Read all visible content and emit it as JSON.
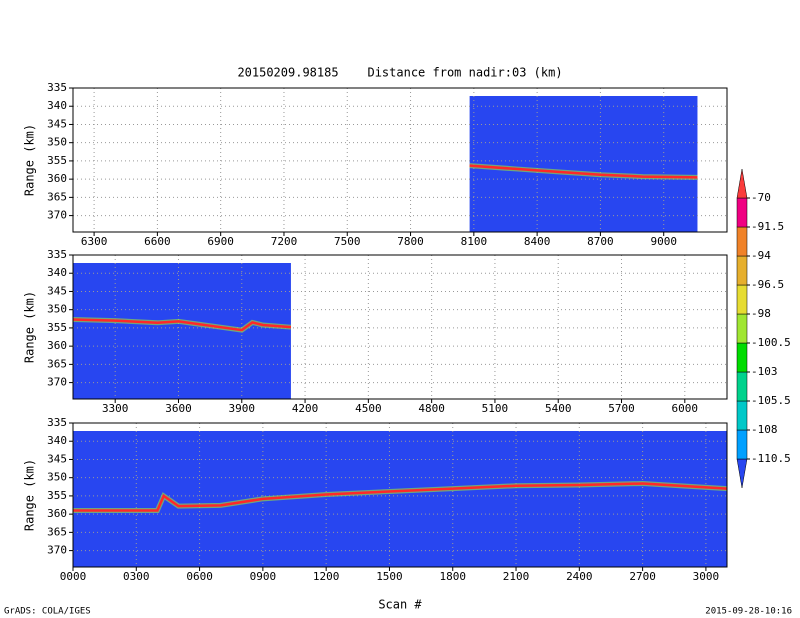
{
  "title": "20150209.98185    Distance from nadir:03 (km)",
  "footer_left": "GrADS: COLA/IGES",
  "footer_right": "2015-09-28-10:16",
  "colorbar": {
    "levels": [
      -110.5,
      -108,
      -105.5,
      -103,
      -100.5,
      -98,
      -96.5,
      -94,
      -91.5,
      -70
    ],
    "colors": [
      "#2846f0",
      "#00a0ff",
      "#00c8c8",
      "#00d28c",
      "#00dc00",
      "#a0e632",
      "#e6dc32",
      "#e6af2d",
      "#f08228",
      "#f00082",
      "#fa3c3c"
    ]
  },
  "chart_data": [
    {
      "type": "line",
      "ylabel": "Range (km)",
      "color": "#ff2828",
      "xlim": [
        6200,
        9300
      ],
      "ylim": [
        335,
        374.5
      ],
      "coverage": [
        8080,
        9160
      ],
      "grid": true,
      "xticks": [
        6300,
        6600,
        6900,
        7200,
        7500,
        7800,
        8100,
        8400,
        8700,
        9000
      ],
      "yticks": [
        335,
        340,
        345,
        350,
        355,
        360,
        365,
        370
      ],
      "x": [
        8080,
        8300,
        8500,
        8700,
        8900,
        9160
      ],
      "values": [
        356.3,
        357.2,
        358,
        358.8,
        359.3,
        359.5
      ]
    },
    {
      "type": "line",
      "ylabel": "Range (km)",
      "color": "#ff2828",
      "xlim": [
        3100,
        6200
      ],
      "ylim": [
        335,
        374.5
      ],
      "coverage": [
        3100,
        4133
      ],
      "grid": true,
      "xticks": [
        3300,
        3600,
        3900,
        4200,
        4500,
        4800,
        5100,
        5400,
        5700,
        6000
      ],
      "yticks": [
        335,
        340,
        345,
        350,
        355,
        360,
        365,
        370
      ],
      "x": [
        3100,
        3300,
        3500,
        3600,
        3800,
        3900,
        3950,
        4000,
        4133
      ],
      "values": [
        352.7,
        353,
        353.6,
        353.2,
        354.8,
        355.6,
        353.5,
        354.2,
        354.8
      ]
    },
    {
      "type": "line",
      "ylabel": "Range (km)",
      "xlabel": "Scan #",
      "color": "#ff2828",
      "xlim": [
        0,
        3100
      ],
      "ylim": [
        335,
        374.5
      ],
      "coverage": [
        0,
        3100
      ],
      "grid": true,
      "xticks": [
        {
          "value": 0,
          "label": "0000"
        },
        {
          "value": 300,
          "label": "0300"
        },
        {
          "value": 600,
          "label": "0600"
        },
        {
          "value": 900,
          "label": "0900"
        },
        1200,
        1500,
        1800,
        2100,
        2400,
        2700,
        3000
      ],
      "yticks": [
        335,
        340,
        345,
        350,
        355,
        360,
        365,
        370
      ],
      "x": [
        0,
        400,
        430,
        500,
        700,
        900,
        1200,
        1500,
        1800,
        2100,
        2400,
        2700,
        3100
      ],
      "values": [
        359,
        359,
        355,
        357.8,
        357.6,
        355.8,
        354.6,
        353.8,
        353,
        352.2,
        352,
        351.6,
        353
      ]
    }
  ]
}
